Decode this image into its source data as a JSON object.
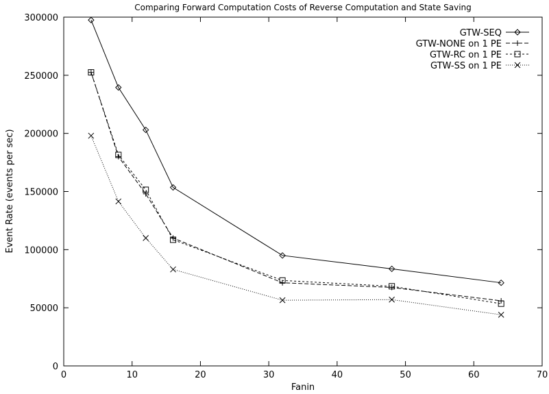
{
  "chart_data": {
    "type": "line",
    "title": "Comparing Forward Computation Costs of Reverse Computation and State Saving",
    "xlabel": "Fanin",
    "ylabel": "Event Rate (events per sec)",
    "xlim": [
      0,
      70
    ],
    "ylim": [
      0,
      300000
    ],
    "xticks": [
      0,
      10,
      20,
      30,
      40,
      50,
      60,
      70
    ],
    "yticks": [
      0,
      50000,
      100000,
      150000,
      200000,
      250000,
      300000
    ],
    "grid": false,
    "legend_position": "top-right",
    "series": [
      {
        "name": "GTW-SEQ",
        "marker": "diamond",
        "dash": "solid",
        "x": [
          4,
          8,
          12,
          16,
          32,
          48,
          64
        ],
        "y": [
          297500,
          239500,
          203000,
          153500,
          95000,
          83500,
          71500
        ]
      },
      {
        "name": "GTW-NONE on 1 PE",
        "marker": "plus",
        "dash": "dashed",
        "x": [
          4,
          8,
          12,
          16,
          32,
          48,
          64
        ],
        "y": [
          252500,
          180000,
          148000,
          110000,
          71500,
          67500,
          56000
        ]
      },
      {
        "name": "GTW-RC on 1 PE",
        "marker": "square",
        "dash": "short-dashed",
        "x": [
          4,
          8,
          12,
          16,
          32,
          48,
          64
        ],
        "y": [
          252500,
          181500,
          151500,
          108500,
          73500,
          68500,
          53500
        ]
      },
      {
        "name": "GTW-SS on 1 PE",
        "marker": "cross",
        "dash": "dotted",
        "x": [
          4,
          8,
          12,
          16,
          32,
          48,
          64
        ],
        "y": [
          198000,
          141500,
          110000,
          83000,
          56500,
          57000,
          44000
        ]
      }
    ]
  }
}
